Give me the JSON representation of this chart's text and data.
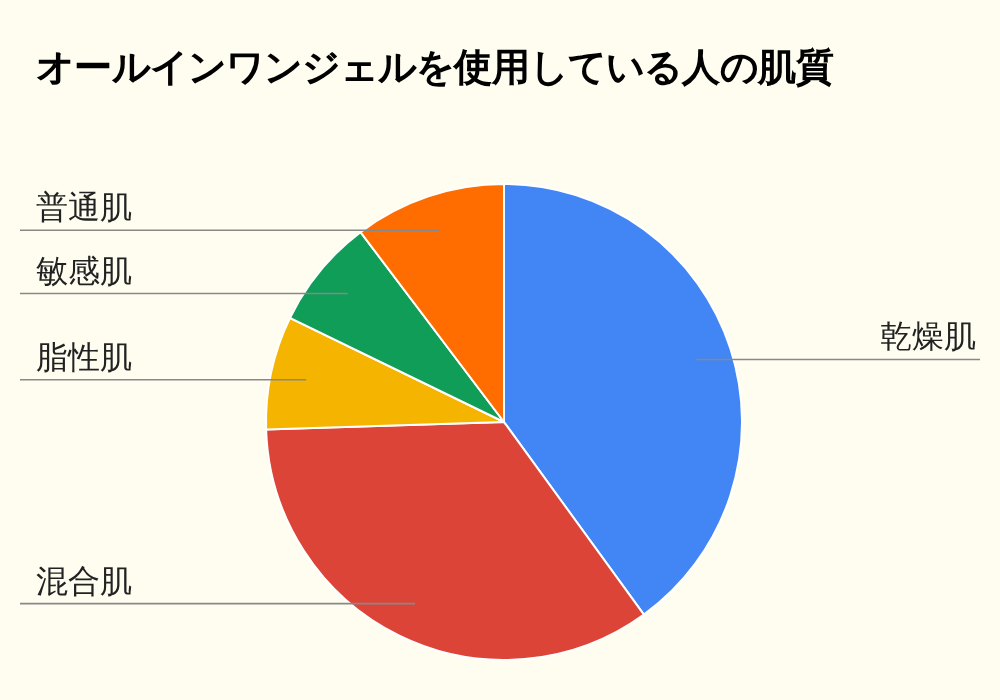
{
  "chart_data": {
    "type": "pie",
    "title": "オールインワンジェルを使用している人の肌質",
    "categories": [
      "乾燥肌",
      "混合肌",
      "脂性肌",
      "敏感肌",
      "普通肌"
    ],
    "values": [
      40,
      34.5,
      7.7,
      7.5,
      10.3
    ],
    "colors": [
      "#4285f4",
      "#db4437",
      "#f4b400",
      "#0f9d58",
      "#ff6d00"
    ]
  }
}
